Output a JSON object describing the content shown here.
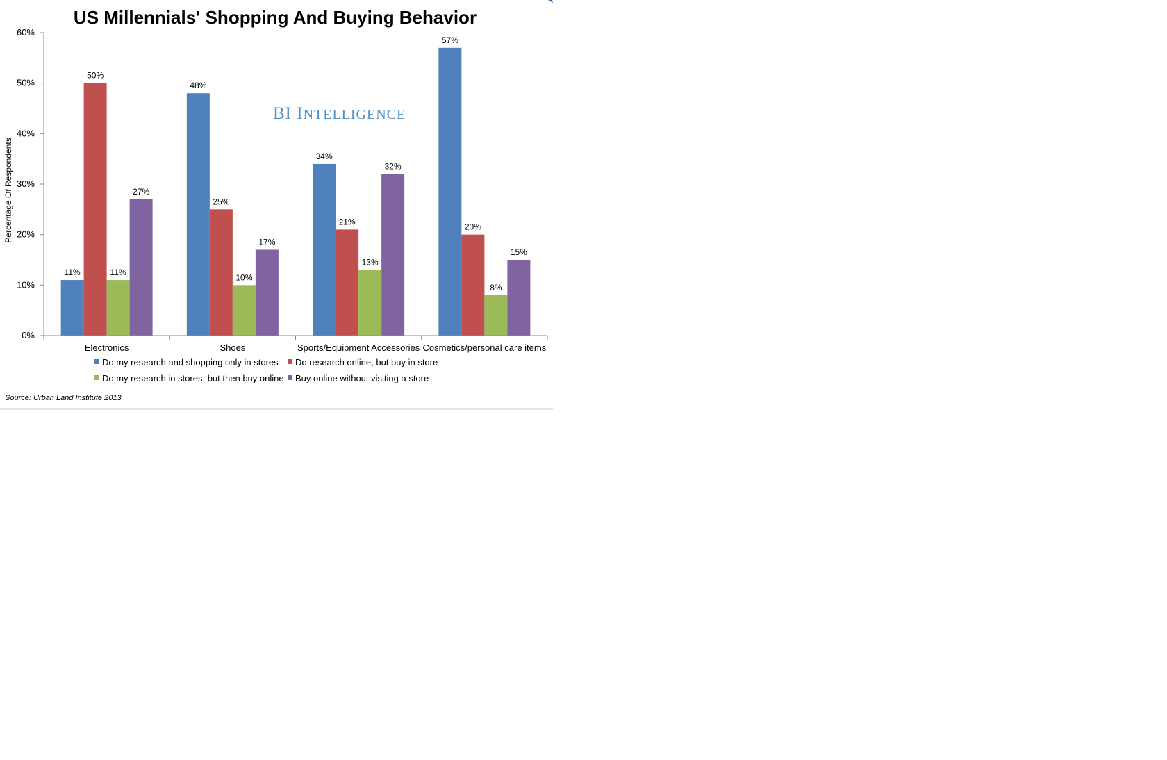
{
  "chart_data": {
    "type": "bar",
    "title": "US Millennials' Shopping And Buying Behavior",
    "ylabel": "Percentage Of Respondents",
    "xlabel": "",
    "ylim": [
      0,
      60
    ],
    "yticks": [
      "0%",
      "10%",
      "20%",
      "30%",
      "40%",
      "50%",
      "60%"
    ],
    "categories": [
      "Electronics",
      "Shoes",
      "Sports/Equipment Accessories",
      "Cosmetics/personal care items"
    ],
    "series": [
      {
        "name": "Do my research and shopping only in stores",
        "color": "#4f81bd",
        "values": [
          11,
          48,
          34,
          57
        ],
        "labels": [
          "11%",
          "48%",
          "34%",
          "57%"
        ]
      },
      {
        "name": "Do research online, but buy in store",
        "color": "#c0504d",
        "values": [
          50,
          25,
          21,
          20
        ],
        "labels": [
          "50%",
          "25%",
          "21%",
          "20%"
        ]
      },
      {
        "name": "Do my research in stores, but then buy online",
        "color": "#9bbb59",
        "values": [
          11,
          10,
          13,
          8
        ],
        "labels": [
          "11%",
          "10%",
          "13%",
          "8%"
        ]
      },
      {
        "name": "Buy online without visiting a store",
        "color": "#8064a2",
        "values": [
          27,
          17,
          32,
          15
        ],
        "labels": [
          "27%",
          "17%",
          "32%",
          "15%"
        ]
      }
    ],
    "grid": false,
    "legend_position": "bottom"
  },
  "watermark": {
    "part1": "BI ",
    "part2": "I",
    "part3": "NTELLIGENCE"
  },
  "source": "Source: Urban Land Institute 2013"
}
